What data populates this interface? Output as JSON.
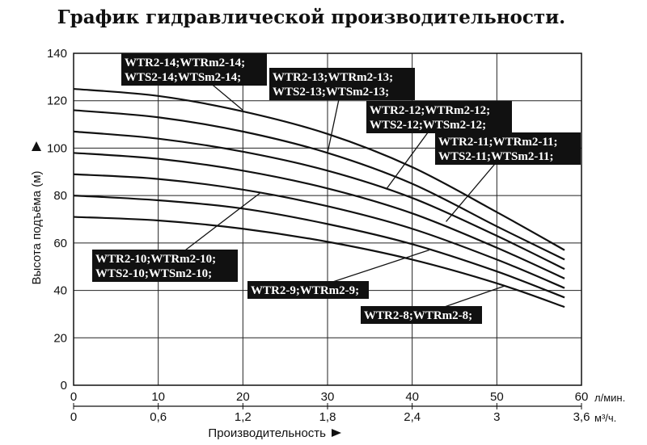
{
  "chart_data": {
    "type": "line",
    "title": "График гидравлической производительности.",
    "ylabel": "Высота подъёма (м)",
    "xlabel": "Производительность",
    "x_unit_primary": "л/мин.",
    "x_unit_secondary": "м³/ч.",
    "xlim": [
      0,
      60
    ],
    "ylim": [
      0,
      140
    ],
    "x_ticks_primary": [
      "0",
      "10",
      "20",
      "30",
      "40",
      "50",
      "60"
    ],
    "x_ticks_secondary": [
      "0",
      "0,6",
      "1,2",
      "1,8",
      "2,4",
      "3",
      "3,6"
    ],
    "y_ticks": [
      "0",
      "20",
      "40",
      "60",
      "80",
      "100",
      "120",
      "140"
    ],
    "grid": true,
    "series": [
      {
        "name": "WTR2-14;WTRm2-14; WTS2-14;WTSm2-14;",
        "label_lines": [
          "WTR2-14;WTRm2-14;",
          "WTS2-14;WTSm2-14;"
        ],
        "x": [
          0,
          10,
          20,
          30,
          40,
          50,
          58
        ],
        "y": [
          125,
          122,
          115.5,
          106,
          92,
          73,
          57
        ]
      },
      {
        "name": "WTR2-13;WTRm2-13; WTS2-13;WTSm2-13;",
        "label_lines": [
          "WTR2-13;WTRm2-13;",
          "WTS2-13;WTSm2-13;"
        ],
        "x": [
          0,
          10,
          20,
          30,
          40,
          50,
          58
        ],
        "y": [
          116,
          113,
          107,
          98,
          85,
          67,
          53
        ]
      },
      {
        "name": "WTR2-12;WTRm2-12; WTS2-12;WTSm2-12;",
        "label_lines": [
          "WTR2-12;WTRm2-12;",
          "WTS2-12;WTSm2-12;"
        ],
        "x": [
          0,
          10,
          20,
          30,
          40,
          50,
          58
        ],
        "y": [
          107,
          104,
          98.5,
          90.5,
          79,
          63,
          49
        ]
      },
      {
        "name": "WTR2-11;WTRm2-11; WTS2-11;WTSm2-11;",
        "label_lines": [
          "WTR2-11;WTRm2-11;",
          "WTS2-11;WTSm2-11;"
        ],
        "x": [
          0,
          10,
          20,
          30,
          40,
          50,
          58
        ],
        "y": [
          98,
          95.5,
          90.5,
          83,
          72.5,
          58,
          45
        ]
      },
      {
        "name": "WTR2-10;WTRm2-10; WTS2-10;WTSm2-10;",
        "label_lines": [
          "WTR2-10;WTRm2-10;",
          "WTS2-10;WTSm2-10;"
        ],
        "x": [
          0,
          10,
          20,
          30,
          40,
          50,
          58
        ],
        "y": [
          89,
          87,
          82.5,
          75.5,
          66,
          53,
          41
        ]
      },
      {
        "name": "WTR2-9;WTRm2-9;",
        "label_lines": [
          "WTR2-9;WTRm2-9;"
        ],
        "x": [
          0,
          10,
          20,
          30,
          40,
          50,
          58
        ],
        "y": [
          80,
          78,
          74.5,
          68,
          59.5,
          48,
          37
        ]
      },
      {
        "name": "WTR2-8;WTRm2-8;",
        "label_lines": [
          "WTR2-8;WTRm2-8;"
        ],
        "x": [
          0,
          10,
          20,
          30,
          40,
          50,
          58
        ],
        "y": [
          71,
          69.5,
          66,
          60.5,
          53,
          43,
          33
        ]
      }
    ],
    "series_label_placement": [
      {
        "lines": 2,
        "box_x": 150,
        "box_y": 66,
        "anchor_x": 20,
        "anchor_y": 116
      },
      {
        "lines": 2,
        "box_x": 333,
        "box_y": 84,
        "anchor_x": 30,
        "anchor_y": 98
      },
      {
        "lines": 2,
        "box_x": 453,
        "box_y": 125,
        "anchor_x": 37,
        "anchor_y": 83
      },
      {
        "lines": 2,
        "box_x": 538,
        "box_y": 164,
        "anchor_x": 44,
        "anchor_y": 69
      },
      {
        "lines": 2,
        "box_x": 114,
        "box_y": 309,
        "anchor_x": 22,
        "anchor_y": 81
      },
      {
        "lines": 1,
        "box_x": 306,
        "box_y": 348,
        "anchor_x": 42,
        "anchor_y": 57
      },
      {
        "lines": 1,
        "box_x": 446,
        "box_y": 379,
        "anchor_x": 51,
        "anchor_y": 42
      }
    ]
  }
}
